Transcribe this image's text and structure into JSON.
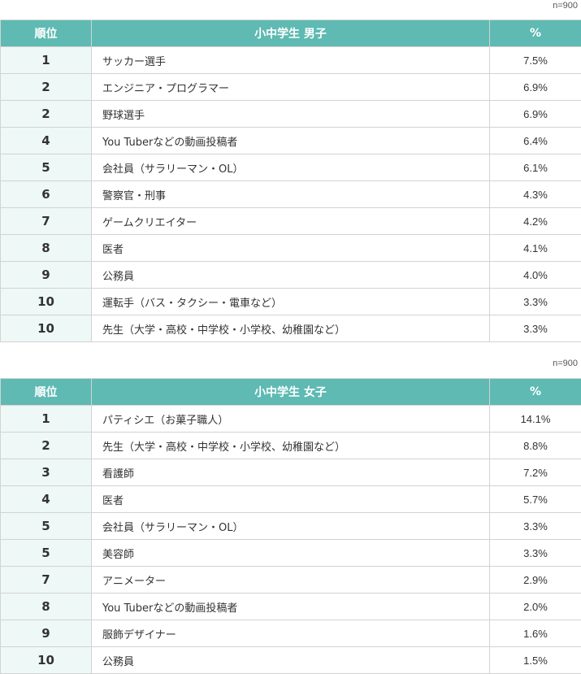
{
  "tables": [
    {
      "n_note": "n=900",
      "headers": {
        "rank": "順位",
        "title": "小中学生 男子",
        "percent": "%"
      },
      "rows": [
        {
          "rank": "1",
          "job": "サッカー選手",
          "pct": "7.5%"
        },
        {
          "rank": "2",
          "job": "エンジニア・プログラマー",
          "pct": "6.9%"
        },
        {
          "rank": "2",
          "job": "野球選手",
          "pct": "6.9%"
        },
        {
          "rank": "4",
          "job": "You Tuberなどの動画投稿者",
          "pct": "6.4%"
        },
        {
          "rank": "5",
          "job": "会社員（サラリーマン・OL）",
          "pct": "6.1%"
        },
        {
          "rank": "6",
          "job": "警察官・刑事",
          "pct": "4.3%"
        },
        {
          "rank": "7",
          "job": "ゲームクリエイター",
          "pct": "4.2%"
        },
        {
          "rank": "8",
          "job": "医者",
          "pct": "4.1%"
        },
        {
          "rank": "9",
          "job": "公務員",
          "pct": "4.0%"
        },
        {
          "rank": "10",
          "job": "運転手（バス・タクシー・電車など）",
          "pct": "3.3%"
        },
        {
          "rank": "10",
          "job": "先生（大学・高校・中学校・小学校、幼稚園など）",
          "pct": "3.3%"
        }
      ]
    },
    {
      "n_note": "n=900",
      "headers": {
        "rank": "順位",
        "title": "小中学生 女子",
        "percent": "%"
      },
      "rows": [
        {
          "rank": "1",
          "job": "パティシエ（お菓子職人）",
          "pct": "14.1%"
        },
        {
          "rank": "2",
          "job": "先生（大学・高校・中学校・小学校、幼稚園など）",
          "pct": "8.8%"
        },
        {
          "rank": "3",
          "job": "看護師",
          "pct": "7.2%"
        },
        {
          "rank": "4",
          "job": "医者",
          "pct": "5.7%"
        },
        {
          "rank": "5",
          "job": "会社員（サラリーマン・OL）",
          "pct": "3.3%"
        },
        {
          "rank": "5",
          "job": "美容師",
          "pct": "3.3%"
        },
        {
          "rank": "7",
          "job": "アニメーター",
          "pct": "2.9%"
        },
        {
          "rank": "8",
          "job": "You Tuberなどの動画投稿者",
          "pct": "2.0%"
        },
        {
          "rank": "9",
          "job": "服飾デザイナー",
          "pct": "1.6%"
        },
        {
          "rank": "10",
          "job": "公務員",
          "pct": "1.5%"
        }
      ]
    }
  ]
}
